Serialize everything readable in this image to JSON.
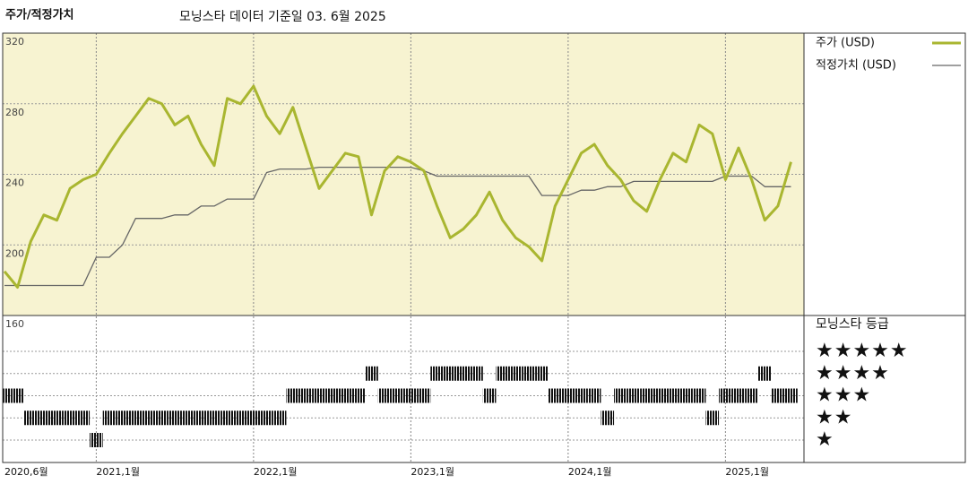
{
  "chart_data": {
    "type": "line",
    "title": "주가/적정가치",
    "subtitle": "모닝스타 데이터 기준일 03. 6월 2025",
    "x": [
      "2020-06",
      "2020-07",
      "2020-08",
      "2020-09",
      "2020-10",
      "2020-11",
      "2020-12",
      "2021-01",
      "2021-02",
      "2021-03",
      "2021-04",
      "2021-05",
      "2021-06",
      "2021-07",
      "2021-08",
      "2021-09",
      "2021-10",
      "2021-11",
      "2021-12",
      "2022-01",
      "2022-02",
      "2022-03",
      "2022-04",
      "2022-05",
      "2022-06",
      "2022-07",
      "2022-08",
      "2022-09",
      "2022-10",
      "2022-11",
      "2022-12",
      "2023-01",
      "2023-02",
      "2023-03",
      "2023-04",
      "2023-05",
      "2023-06",
      "2023-07",
      "2023-08",
      "2023-09",
      "2023-10",
      "2023-11",
      "2023-12",
      "2024-01",
      "2024-02",
      "2024-03",
      "2024-04",
      "2024-05",
      "2024-06",
      "2024-07",
      "2024-08",
      "2024-09",
      "2024-10",
      "2024-11",
      "2024-12",
      "2025-01",
      "2025-02",
      "2025-03",
      "2025-04",
      "2025-05",
      "2025-06"
    ],
    "series": [
      {
        "name": "주가 (USD)",
        "color": "#a9b630",
        "values": [
          185,
          176,
          202,
          217,
          214,
          232,
          237,
          240,
          252,
          263,
          273,
          283,
          280,
          268,
          273,
          257,
          245,
          283,
          280,
          290,
          273,
          263,
          278,
          255,
          232,
          242,
          252,
          250,
          217,
          242,
          250,
          247,
          242,
          222,
          204,
          209,
          217,
          230,
          214,
          204,
          199,
          191,
          222,
          237,
          252,
          257,
          245,
          237,
          225,
          219,
          237,
          252,
          247,
          268,
          263,
          237,
          255,
          237,
          214,
          222,
          247
        ]
      },
      {
        "name": "적정가치 (USD)",
        "color": "#666666",
        "values": [
          177,
          177,
          177,
          177,
          177,
          177,
          177,
          193,
          193,
          200,
          215,
          215,
          215,
          217,
          217,
          222,
          222,
          226,
          226,
          226,
          241,
          243,
          243,
          243,
          244,
          244,
          244,
          244,
          244,
          244,
          244,
          244,
          242,
          239,
          239,
          239,
          239,
          239,
          239,
          239,
          239,
          228,
          228,
          228,
          231,
          231,
          233,
          233,
          236,
          236,
          236,
          236,
          236,
          236,
          236,
          239,
          239,
          239,
          233,
          233,
          233
        ]
      }
    ],
    "ylim": [
      160,
      320
    ],
    "yticks": [
      160,
      200,
      240,
      280,
      320
    ],
    "xticks": [
      {
        "value": "2020-06",
        "label": "2020,6월"
      },
      {
        "value": "2021-01",
        "label": "2021,1월"
      },
      {
        "value": "2022-01",
        "label": "2022,1월"
      },
      {
        "value": "2023-01",
        "label": "2023,1월"
      },
      {
        "value": "2024-01",
        "label": "2024,1월"
      },
      {
        "value": "2025-01",
        "label": "2025,1월"
      }
    ],
    "grid": true,
    "background": "#f7f3d1",
    "ratings": {
      "title": "모닝스타 등급",
      "levels": [
        5,
        4,
        3,
        2,
        1
      ],
      "level_labels": [
        "★★★★★",
        "★★★★",
        "★★★",
        "★★",
        "★"
      ],
      "values": [
        3,
        3,
        2,
        2,
        2,
        2,
        2,
        1,
        2,
        2,
        2,
        2,
        2,
        2,
        2,
        2,
        2,
        2,
        2,
        2,
        2,
        2,
        3,
        3,
        3,
        3,
        3,
        3,
        4,
        3,
        3,
        3,
        3,
        4,
        4,
        4,
        4,
        3,
        4,
        4,
        4,
        4,
        3,
        3,
        3,
        3,
        2,
        3,
        3,
        3,
        3,
        3,
        3,
        3,
        2,
        3,
        3,
        3,
        4,
        3,
        3
      ]
    }
  }
}
